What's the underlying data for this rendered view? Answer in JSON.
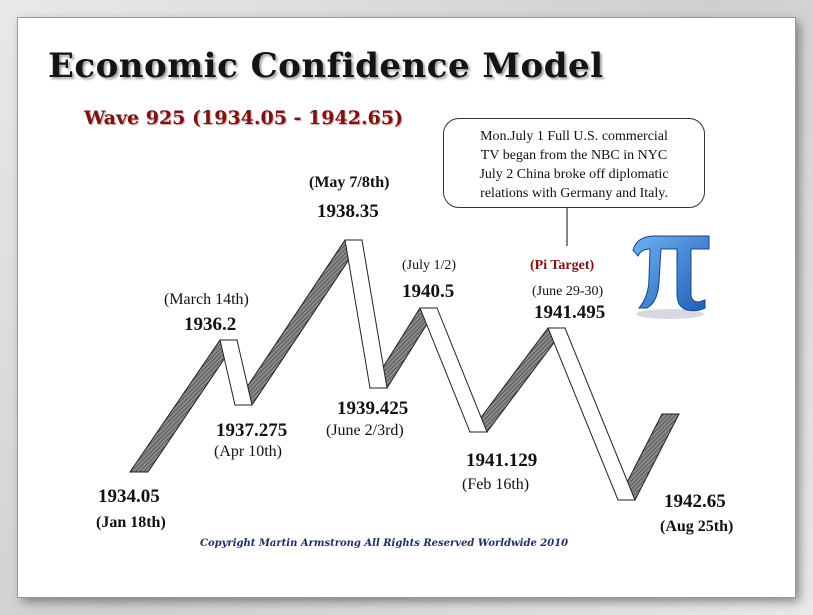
{
  "title": "Economic Confidence Model",
  "subtitle": "Wave 925 (1934.05 - 1942.65)",
  "callout": {
    "lines": [
      "Mon.July 1 Full U.S. commercial",
      "TV began from the NBC in NYC",
      "July 2 China broke off diplomatic",
      "relations with Germany and Italy."
    ]
  },
  "pi_target_label": "(Pi Target)",
  "pi_icon": "pi-symbol-icon",
  "points": [
    {
      "value": "1934.05",
      "date": "(Jan 18th)"
    },
    {
      "value": "1936.2",
      "date": "(March 14th)"
    },
    {
      "value": "1937.275",
      "date": "(Apr 10th)"
    },
    {
      "value": "1938.35",
      "date": "(May 7/8th)"
    },
    {
      "value": "1939.425",
      "date": "(June 2/3rd)"
    },
    {
      "value": "1940.5",
      "date": "(July 1/2)"
    },
    {
      "value": "1941.129",
      "date": "(Feb 16th)"
    },
    {
      "value": "1941.495",
      "date": "(June 29-30)"
    },
    {
      "value": "1942.65",
      "date": "(Aug 25th)"
    }
  ],
  "copyright": "Copyright Martin Armstrong All Rights Reserved Worldwide 2010",
  "colors": {
    "title": "#141414",
    "subtitle": "#7d1212",
    "pi": "#2a73c9",
    "copyright": "#1e2f63"
  }
}
